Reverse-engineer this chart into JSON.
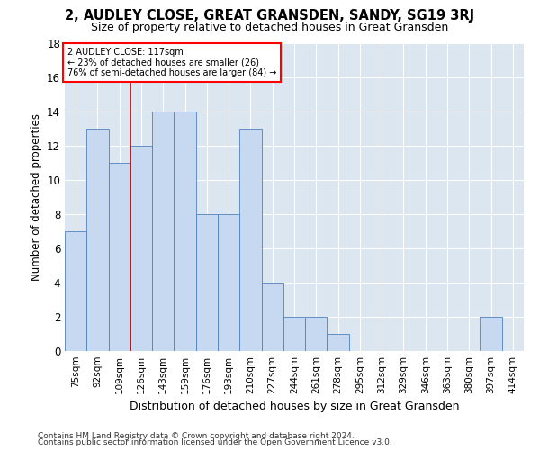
{
  "title": "2, AUDLEY CLOSE, GREAT GRANSDEN, SANDY, SG19 3RJ",
  "subtitle": "Size of property relative to detached houses in Great Gransden",
  "xlabel": "Distribution of detached houses by size in Great Gransden",
  "ylabel": "Number of detached properties",
  "categories": [
    "75sqm",
    "92sqm",
    "109sqm",
    "126sqm",
    "143sqm",
    "159sqm",
    "176sqm",
    "193sqm",
    "210sqm",
    "227sqm",
    "244sqm",
    "261sqm",
    "278sqm",
    "295sqm",
    "312sqm",
    "329sqm",
    "346sqm",
    "363sqm",
    "380sqm",
    "397sqm",
    "414sqm"
  ],
  "values": [
    7,
    13,
    11,
    12,
    14,
    14,
    8,
    8,
    13,
    4,
    2,
    2,
    1,
    0,
    0,
    0,
    0,
    0,
    0,
    2,
    0
  ],
  "bar_color": "#c6d9f0",
  "bar_edge_color": "#4f81bd",
  "background_color": "#dce6f1",
  "annotation_text_line1": "2 AUDLEY CLOSE: 117sqm",
  "annotation_text_line2": "← 23% of detached houses are smaller (26)",
  "annotation_text_line3": "76% of semi-detached houses are larger (84) →",
  "annotation_box_color": "#ffffff",
  "annotation_border_color": "#ff0000",
  "vline_color": "#cc0000",
  "vline_x": 2.5,
  "ylim": [
    0,
    18
  ],
  "yticks": [
    0,
    2,
    4,
    6,
    8,
    10,
    12,
    14,
    16,
    18
  ],
  "footnote1": "Contains HM Land Registry data © Crown copyright and database right 2024.",
  "footnote2": "Contains public sector information licensed under the Open Government Licence v3.0."
}
